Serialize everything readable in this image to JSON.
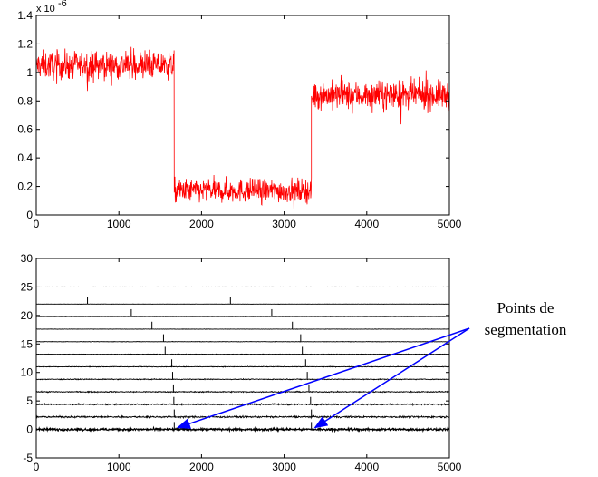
{
  "chart_data": [
    {
      "type": "line",
      "title": "",
      "xlabel": "",
      "ylabel": "",
      "xlim": [
        0,
        5000
      ],
      "ylim": [
        0,
        1.4
      ],
      "x_ticks": [
        "0",
        "1000",
        "2000",
        "3000",
        "4000",
        "5000"
      ],
      "y_ticks": [
        "0",
        "0.2",
        "0.4",
        "0.6",
        "0.8",
        "1",
        "1.2",
        "1.4"
      ],
      "y_exponent_label": "x 10",
      "y_exponent_power": "-6",
      "grid": false,
      "series": [
        {
          "color": "#ff0000",
          "segments": [
            {
              "x_start": 0,
              "x_end": 1670,
              "mean": 1.05,
              "spread": 0.12
            },
            {
              "x_start": 1670,
              "x_end": 3330,
              "mean": 0.17,
              "spread": 0.1
            },
            {
              "x_start": 3330,
              "x_end": 5000,
              "mean": 0.84,
              "spread": 0.12
            }
          ]
        }
      ]
    },
    {
      "type": "line",
      "title": "",
      "xlabel": "",
      "ylabel": "",
      "xlim": [
        0,
        5000
      ],
      "ylim": [
        -5,
        30
      ],
      "x_ticks": [
        "0",
        "1000",
        "2000",
        "3000",
        "4000",
        "5000"
      ],
      "y_ticks": [
        "-5",
        "0",
        "5",
        "10",
        "15",
        "20",
        "25",
        "30"
      ],
      "grid": false,
      "series": [
        {
          "color": "#000000",
          "offset": 0,
          "spikes": [
            1670,
            3330
          ],
          "noise": 0.35
        },
        {
          "color": "#000000",
          "offset": 2.2,
          "spikes": [
            1670,
            3330
          ],
          "noise": 0.25
        },
        {
          "color": "#000000",
          "offset": 4.4,
          "spikes": [
            1665,
            3320
          ],
          "noise": 0.2
        },
        {
          "color": "#000000",
          "offset": 6.6,
          "spikes": [
            1660,
            3300
          ],
          "noise": 0.15
        },
        {
          "color": "#000000",
          "offset": 8.8,
          "spikes": [
            1650,
            3280
          ],
          "noise": 0.12
        },
        {
          "color": "#000000",
          "offset": 11,
          "spikes": [
            1640,
            3260
          ],
          "noise": 0.1
        },
        {
          "color": "#000000",
          "offset": 13.2,
          "spikes": [
            1560,
            3220
          ],
          "noise": 0.08
        },
        {
          "color": "#000000",
          "offset": 15.4,
          "spikes": [
            1540,
            3200
          ],
          "noise": 0.06
        },
        {
          "color": "#000000",
          "offset": 17.6,
          "spikes": [
            1400,
            3100
          ],
          "noise": 0.05
        },
        {
          "color": "#000000",
          "offset": 19.8,
          "spikes": [
            1150,
            2850
          ],
          "noise": 0.04
        },
        {
          "color": "#000000",
          "offset": 22,
          "spikes": [
            620,
            2350
          ],
          "noise": 0.03
        },
        {
          "color": "#000000",
          "offset": 25,
          "spikes": [],
          "noise": 0.02
        }
      ],
      "annotation": {
        "lines": [
          "Points de",
          "segmentation"
        ],
        "arrow_color": "#0000ff",
        "targets": [
          {
            "x": 1670,
            "y": 0
          },
          {
            "x": 3330,
            "y": 0
          }
        ]
      }
    }
  ]
}
